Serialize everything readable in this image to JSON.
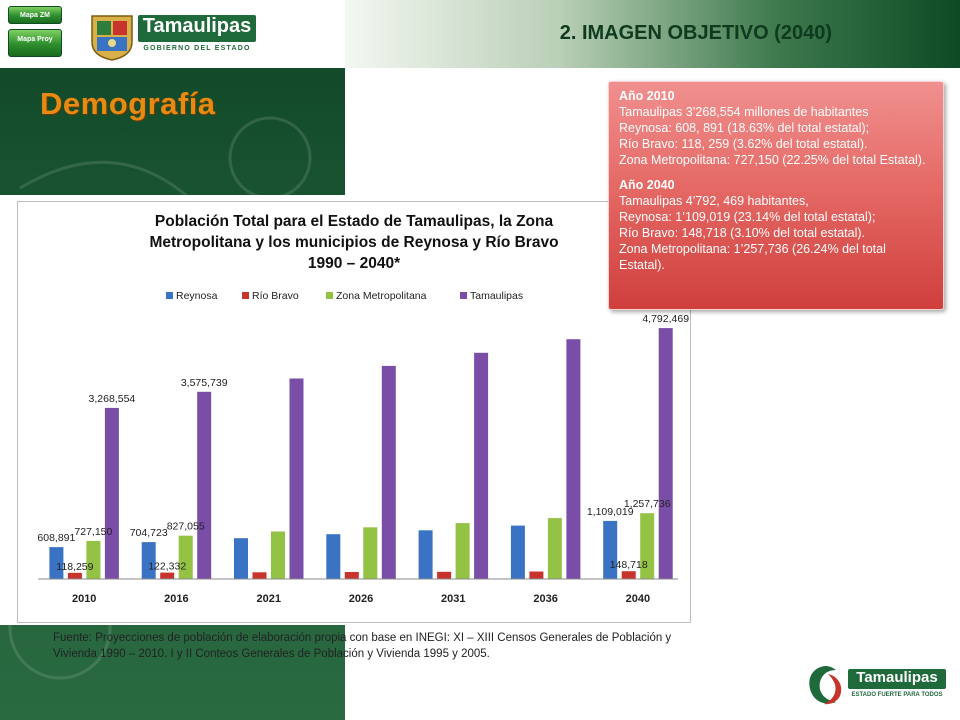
{
  "header": {
    "title": "2. IMAGEN OBJETIVO (2040)",
    "nav_buttons": [
      "Mapa ZM",
      "Mapa Proy"
    ]
  },
  "logo": {
    "word": "Tamaulipas",
    "subtitle": "GOBIERNO DEL ESTADO"
  },
  "section_title": "Demografía",
  "info_box": {
    "blocks": [
      {
        "year": "Año 2010",
        "lines": [
          "Tamaulipas 3’268,554 millones de habitantes",
          "Reynosa: 608, 891 (18.63% del total estatal);",
          "Río Bravo: 118, 259 (3.62% del total estatal).",
          "Zona Metropolitana: 727,150 (22.25% del total Estatal)."
        ]
      },
      {
        "year": "Año 2040",
        "lines": [
          "Tamaulipas 4’792, 469 habitantes,",
          "Reynosa: 1’109,019 (23.14% del total estatal);",
          "Río Bravo: 148,718 (3.10% del total estatal).",
          "Zona Metropolitana: 1’257,736 (26.24% del total Estatal)."
        ]
      }
    ]
  },
  "source_note": "Fuente: Proyecciones de población de elaboración propia con base en INEGI: XI – XIII Censos Generales de Población y Vivienda 1990 – 2010. I y II Conteos Generales de Población y Vivienda 1995 y 2005.",
  "footer_logo": {
    "word": "Tamaulipas",
    "subtitle": "ESTADO FUERTE PARA TODOS"
  },
  "colors": {
    "green_dark": "#0f4526",
    "accent_orange": "#e68a14",
    "info_red": "#e06360",
    "reynosa": "#3b73c4",
    "rio_bravo": "#c8332b",
    "zona": "#93c245",
    "tamaulipas": "#7a4ea6"
  },
  "chart_data": {
    "type": "bar",
    "title_lines": [
      "Población Total para el Estado de Tamaulipas, la Zona",
      "Metropolitana y los municipios de Reynosa y Río Bravo",
      "1990 – 2040*"
    ],
    "categories": [
      "2010",
      "2016",
      "2021",
      "2026",
      "2031",
      "2036",
      "2040"
    ],
    "series": [
      {
        "name": "Reynosa",
        "color": "#3b73c4",
        "values": [
          608891,
          704723,
          780000,
          855000,
          930000,
          1020000,
          1109019
        ]
      },
      {
        "name": "Río Bravo",
        "color": "#c8332b",
        "values": [
          118259,
          122332,
          128000,
          133000,
          138000,
          143000,
          148718
        ]
      },
      {
        "name": "Zona Metropolitana",
        "color": "#93c245",
        "values": [
          727150,
          827055,
          908000,
          988000,
          1068000,
          1163000,
          1257736
        ]
      },
      {
        "name": "Tamaulipas",
        "color": "#7a4ea6",
        "values": [
          3268554,
          3575739,
          3830000,
          4070000,
          4320000,
          4580000,
          4792469
        ]
      }
    ],
    "data_labels": [
      {
        "series": 0,
        "index": 0,
        "text": "608,891"
      },
      {
        "series": 1,
        "index": 0,
        "text": "118,259"
      },
      {
        "series": 2,
        "index": 0,
        "text": "727,150"
      },
      {
        "series": 3,
        "index": 0,
        "text": "3,268,554"
      },
      {
        "series": 0,
        "index": 1,
        "text": "704,723"
      },
      {
        "series": 1,
        "index": 1,
        "text": "122,332"
      },
      {
        "series": 2,
        "index": 1,
        "text": "827,055"
      },
      {
        "series": 3,
        "index": 1,
        "text": "3,575,739"
      },
      {
        "series": 0,
        "index": 6,
        "text": "1,109,019"
      },
      {
        "series": 1,
        "index": 6,
        "text": "148,718"
      },
      {
        "series": 2,
        "index": 6,
        "text": "1,257,736"
      },
      {
        "series": 3,
        "index": 6,
        "text": "4,792,469"
      }
    ],
    "ylim": [
      0,
      5100000
    ],
    "legend_position": "top",
    "grid": false
  }
}
